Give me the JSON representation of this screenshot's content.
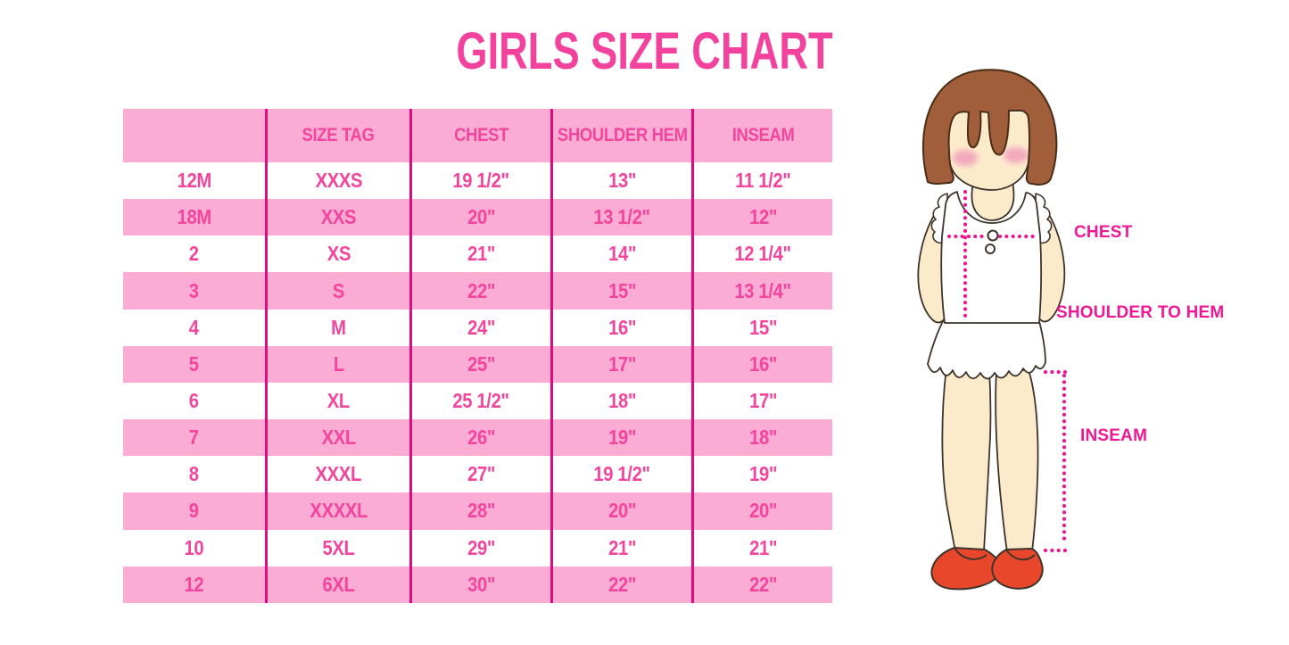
{
  "title": "GIRLS SIZE CHART",
  "table": {
    "columns": [
      "",
      "SIZE TAG",
      "CHEST",
      "SHOULDER HEM",
      "INSEAM"
    ],
    "rows": [
      [
        "12M",
        "XXXS",
        "19 1/2\"",
        "13\"",
        "11 1/2\""
      ],
      [
        "18M",
        "XXS",
        "20\"",
        "13 1/2\"",
        "12\""
      ],
      [
        "2",
        "XS",
        "21\"",
        "14\"",
        "12 1/4\""
      ],
      [
        "3",
        "S",
        "22\"",
        "15\"",
        "13 1/4\""
      ],
      [
        "4",
        "M",
        "24\"",
        "16\"",
        "15\""
      ],
      [
        "5",
        "L",
        "25\"",
        "17\"",
        "16\""
      ],
      [
        "6",
        "XL",
        "25 1/2\"",
        "18\"",
        "17\""
      ],
      [
        "7",
        "XXL",
        "26\"",
        "19\"",
        "18\""
      ],
      [
        "8",
        "XXXL",
        "27\"",
        "19 1/2\"",
        "19\""
      ],
      [
        "9",
        "XXXXL",
        "28\"",
        "20\"",
        "20\""
      ],
      [
        "10",
        "5XL",
        "29\"",
        "21\"",
        "21\""
      ],
      [
        "12",
        "6XL",
        "30\"",
        "22\"",
        "22\""
      ]
    ]
  },
  "diagram": {
    "labels": {
      "chest": "CHEST",
      "shoulder_to_hem": "SHOULDER TO HEM",
      "inseam": "INSEAM"
    }
  },
  "colors": {
    "title_pink": "#F2429D",
    "row_pink": "#FAACD4",
    "rule_magenta": "#DF0C80",
    "table_text_pink": "#F2459E",
    "label_pink": "#EE1894",
    "dotted_line_pink": "#EE1390",
    "hair_brown": "#A05E3B",
    "skin": "#FCEBCB",
    "blush": "#F2A9BD",
    "shoe_red": "#E9472C",
    "background": "#FFFFFF"
  }
}
